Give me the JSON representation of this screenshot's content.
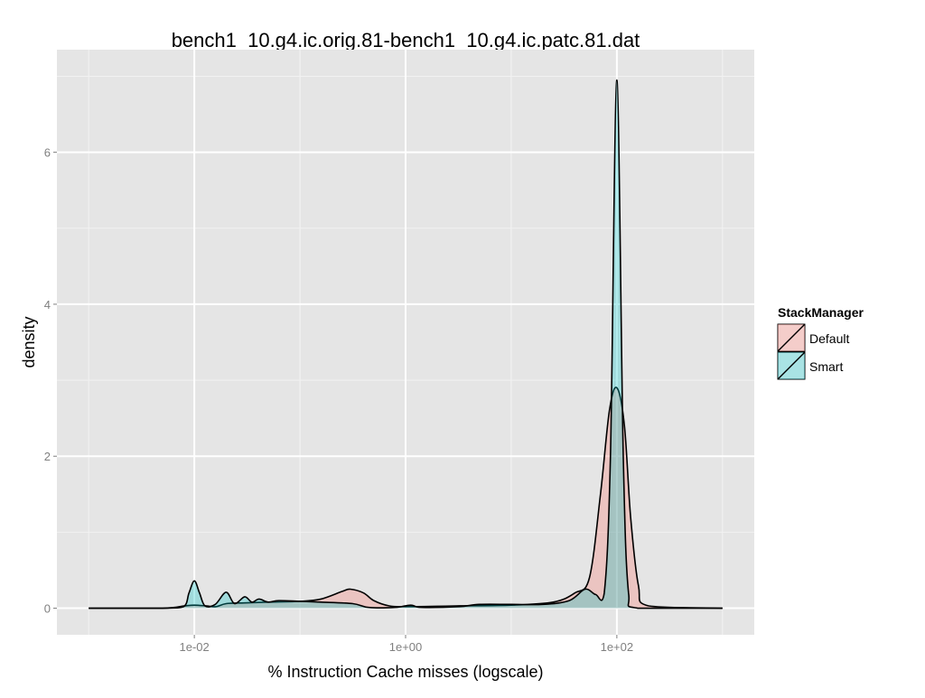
{
  "chart_data": {
    "type": "area",
    "title": "bench1_10.g4.ic.orig.81-bench1_10.g4.ic.patc.81.dat",
    "xlabel": "% Instruction Cache misses (logscale)",
    "ylabel": "density",
    "xscale": "log10",
    "xlim": [
      0.0005,
      2000
    ],
    "ylim": [
      -0.35,
      7.35
    ],
    "x_ticks": [
      {
        "value": 0.01,
        "label": "1e-02"
      },
      {
        "value": 1,
        "label": "1e+00"
      },
      {
        "value": 100,
        "label": "1e+02"
      }
    ],
    "y_ticks": [
      {
        "value": 0,
        "label": "0"
      },
      {
        "value": 2,
        "label": "2"
      },
      {
        "value": 4,
        "label": "4"
      },
      {
        "value": 6,
        "label": "6"
      }
    ],
    "grid": true,
    "legend": {
      "title": "StackManager",
      "placement": "right"
    },
    "series": [
      {
        "name": "Default",
        "color": "#F8766D",
        "x": [
          0.001,
          0.005,
          0.008,
          0.01,
          0.013,
          0.016,
          0.02,
          0.03,
          0.05,
          0.1,
          0.158,
          0.25,
          0.3,
          0.4,
          0.5,
          0.7,
          1,
          3,
          10,
          25,
          40,
          55,
          70,
          85,
          100,
          118,
          135,
          160,
          200,
          1000
        ],
        "y": [
          0,
          0,
          0.03,
          0.04,
          0.03,
          0.02,
          0.06,
          0.07,
          0.08,
          0.09,
          0.12,
          0.22,
          0.25,
          0.2,
          0.1,
          0.03,
          0.02,
          0.03,
          0.04,
          0.08,
          0.2,
          0.4,
          1.5,
          2.6,
          2.9,
          2.4,
          1.2,
          0.3,
          0.03,
          0
        ]
      },
      {
        "name": "Smart",
        "color": "#00BFC4",
        "x": [
          0.001,
          0.005,
          0.0079,
          0.0089,
          0.01,
          0.0112,
          0.0126,
          0.0158,
          0.02,
          0.024,
          0.03,
          0.035,
          0.041,
          0.05,
          0.063,
          0.1,
          0.158,
          0.316,
          0.447,
          0.794,
          1.12,
          1.41,
          3.16,
          5.01,
          10,
          20,
          35.5,
          50,
          63,
          76,
          87,
          100,
          115,
          129,
          158,
          1000
        ],
        "y": [
          0,
          0,
          0.02,
          0.2,
          0.36,
          0.2,
          0.03,
          0.05,
          0.21,
          0.06,
          0.15,
          0.08,
          0.12,
          0.08,
          0.1,
          0.09,
          0.08,
          0.06,
          0.01,
          0.01,
          0.04,
          0.01,
          0.02,
          0.05,
          0.05,
          0.05,
          0.1,
          0.25,
          0.18,
          0.2,
          2,
          6.95,
          2,
          0.2,
          0,
          0
        ]
      }
    ]
  }
}
